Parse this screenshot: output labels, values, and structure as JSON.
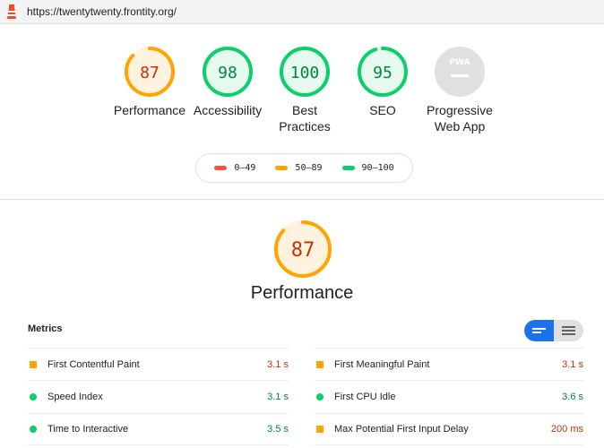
{
  "browser": {
    "url": "https://twentytwenty.frontity.org/"
  },
  "categories": [
    {
      "label_lines": [
        "Performance"
      ],
      "score": "87",
      "color": "#ffa400",
      "fill": "#fff3e0",
      "fraction": 0.87
    },
    {
      "label_lines": [
        "Accessibility"
      ],
      "score": "98",
      "color": "#0cce6b",
      "fill": "#e6f9ee",
      "fraction": 0.98
    },
    {
      "label_lines": [
        "Best",
        "Practices"
      ],
      "score": "100",
      "color": "#0cce6b",
      "fill": "#e6f9ee",
      "fraction": 1.0
    },
    {
      "label_lines": [
        "SEO"
      ],
      "score": "95",
      "color": "#0cce6b",
      "fill": "#e6f9ee",
      "fraction": 0.95
    },
    {
      "label_lines": [
        "Progressive",
        "Web App"
      ],
      "score": "PWA",
      "color": "#e0e0e0",
      "fill": "#e0e0e0",
      "fraction": 0
    }
  ],
  "legend": [
    {
      "label": "0–49",
      "color": "#ff4e42"
    },
    {
      "label": "50–89",
      "color": "#ffa400"
    },
    {
      "label": "90–100",
      "color": "#0cce6b"
    }
  ],
  "section": {
    "score": "87",
    "fraction": 0.87,
    "title": "Performance"
  },
  "metrics": {
    "title": "Metrics",
    "left": [
      {
        "name": "First Contentful Paint",
        "value": "3.1 s",
        "status": "average"
      },
      {
        "name": "Speed Index",
        "value": "3.1 s",
        "status": "pass"
      },
      {
        "name": "Time to Interactive",
        "value": "3.5 s",
        "status": "pass"
      }
    ],
    "right": [
      {
        "name": "First Meaningful Paint",
        "value": "3.1 s",
        "status": "average"
      },
      {
        "name": "First CPU Idle",
        "value": "3.6 s",
        "status": "pass"
      },
      {
        "name": "Max Potential First Input Delay",
        "value": "200 ms",
        "status": "average"
      }
    ]
  }
}
